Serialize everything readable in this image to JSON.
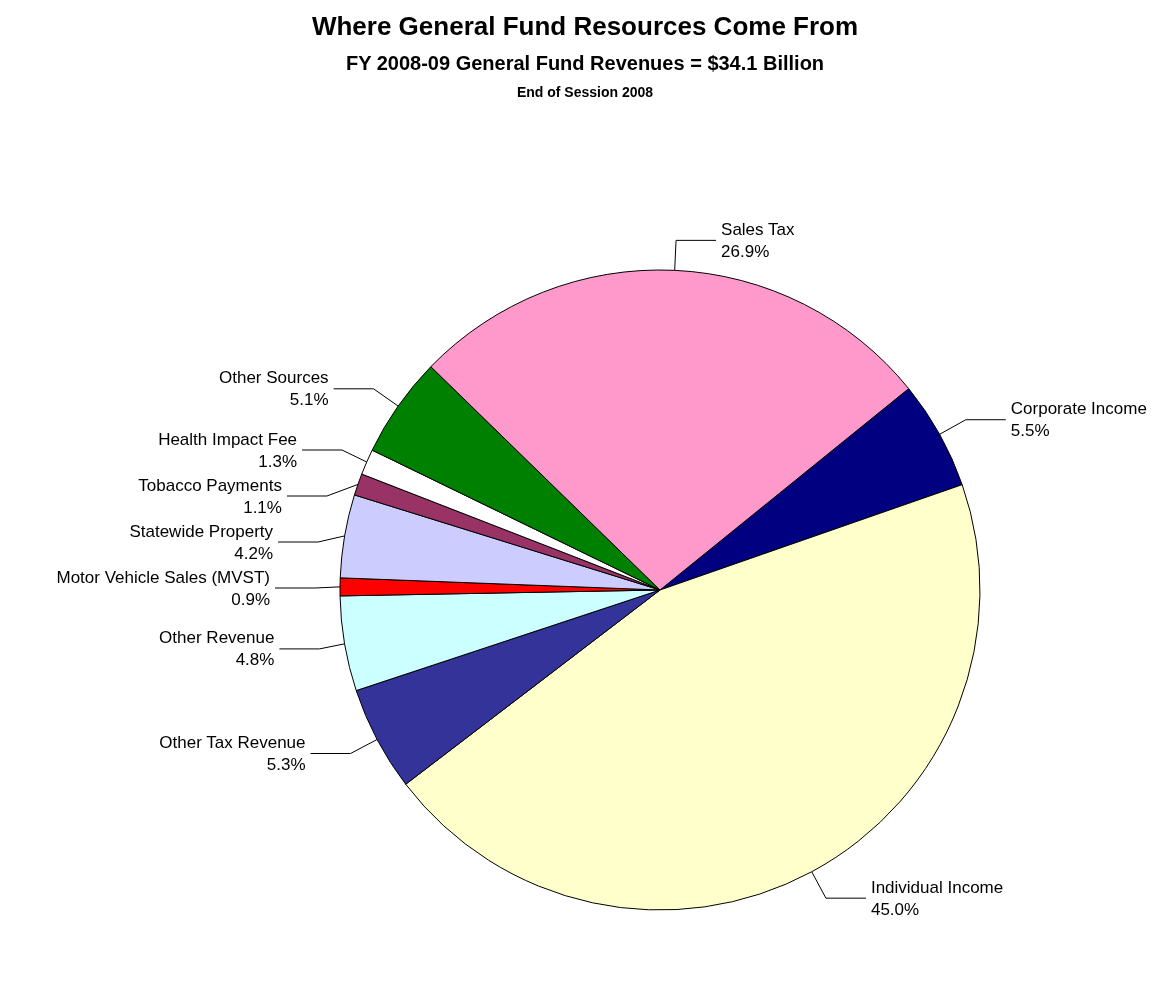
{
  "chart_data": {
    "type": "pie",
    "title": "Where General Fund Resources Come From",
    "subtitle": "FY 2008-09 General Fund Revenues = $34.1 Billion",
    "annotations": [
      "End of Session 2008"
    ],
    "categories": [
      "Corporate Income",
      "Individual Income",
      "Other Tax Revenue",
      "Other Revenue",
      "Motor Vehicle Sales (MVST)",
      "Statewide Property",
      "Tobacco Payments",
      "Health Impact Fee",
      "Other Sources",
      "Sales Tax"
    ],
    "values": [
      5.5,
      45.0,
      5.3,
      4.8,
      0.9,
      4.2,
      1.1,
      1.3,
      5.1,
      26.9
    ],
    "value_labels": [
      "5.5%",
      "45.0%",
      "5.3%",
      "4.8%",
      "0.9%",
      "4.2%",
      "1.1%",
      "1.3%",
      "5.1%",
      "26.9%"
    ],
    "colors": [
      "#000080",
      "#ffffcc",
      "#333399",
      "#ccffff",
      "#ff0000",
      "#ccccff",
      "#993366",
      "#ffffff",
      "#008000",
      "#ff99cc"
    ]
  }
}
